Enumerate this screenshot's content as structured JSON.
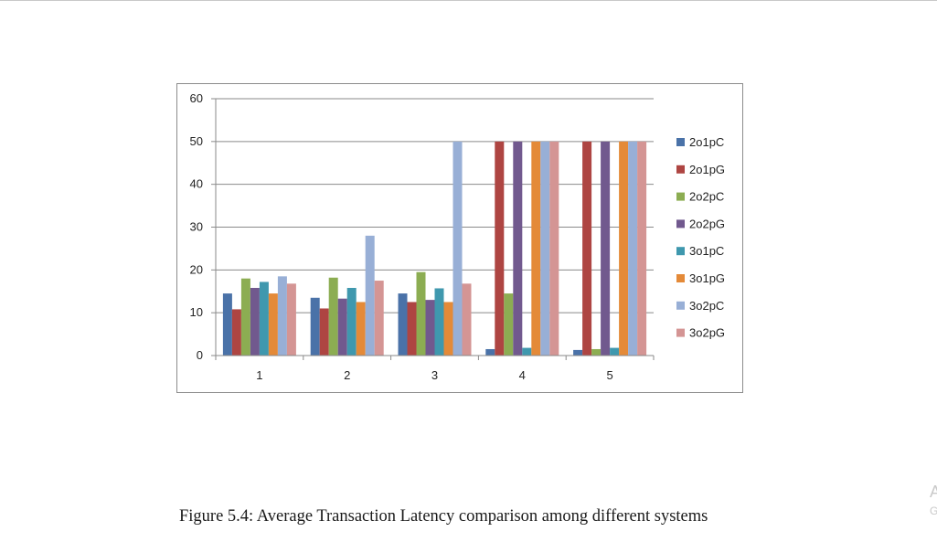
{
  "caption": "Figure 5.4: Average Transaction Latency comparison among different systems",
  "edge_fragments": [
    "A",
    "G"
  ],
  "chart_data": {
    "type": "bar",
    "categories": [
      "1",
      "2",
      "3",
      "4",
      "5"
    ],
    "ylim": [
      0,
      60
    ],
    "yticks": [
      0,
      10,
      20,
      30,
      40,
      50,
      60
    ],
    "grid": true,
    "legend_position": "right",
    "title": "",
    "xlabel": "",
    "ylabel": "",
    "series": [
      {
        "name": "2o1pC",
        "color": "#4a72a8",
        "values": [
          14.5,
          13.5,
          14.5,
          1.5,
          1.3
        ]
      },
      {
        "name": "2o1pG",
        "color": "#ae4542",
        "values": [
          10.8,
          11.0,
          12.5,
          50,
          50
        ]
      },
      {
        "name": "2o2pC",
        "color": "#8cad52",
        "values": [
          18.0,
          18.2,
          19.5,
          14.5,
          1.5
        ]
      },
      {
        "name": "2o2pG",
        "color": "#71598e",
        "values": [
          15.8,
          13.3,
          13.0,
          50,
          50
        ]
      },
      {
        "name": "3o1pC",
        "color": "#3f98ae",
        "values": [
          17.2,
          15.8,
          15.7,
          1.8,
          1.8
        ]
      },
      {
        "name": "3o1pG",
        "color": "#e48a38",
        "values": [
          14.5,
          12.5,
          12.5,
          50,
          50
        ]
      },
      {
        "name": "3o2pC",
        "color": "#98afd6",
        "values": [
          18.5,
          28.0,
          50,
          50,
          50
        ]
      },
      {
        "name": "3o2pG",
        "color": "#d49594",
        "values": [
          16.8,
          17.5,
          16.8,
          50,
          50
        ]
      }
    ]
  }
}
